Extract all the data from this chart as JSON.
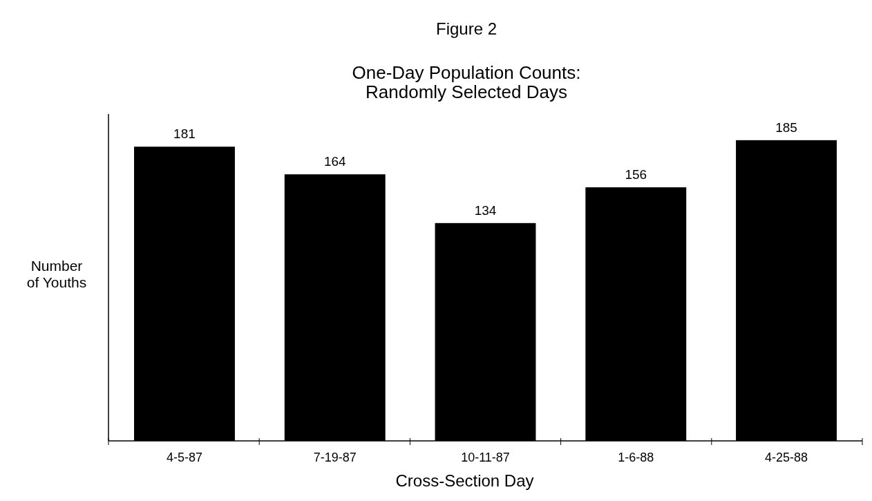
{
  "chart_data": {
    "type": "bar",
    "title": "One-Day Population Counts:\nRandomly Selected Days",
    "annotations": [
      "Figure 2"
    ],
    "xlabel": "Cross-Section Day",
    "ylabel": "Number\nof Youths",
    "categories": [
      "4-5-87",
      "7-19-87",
      "10-11-87",
      "1-6-88",
      "4-25-88"
    ],
    "values": [
      181,
      164,
      134,
      156,
      185
    ],
    "color": "#000000",
    "data_labels": true
  }
}
